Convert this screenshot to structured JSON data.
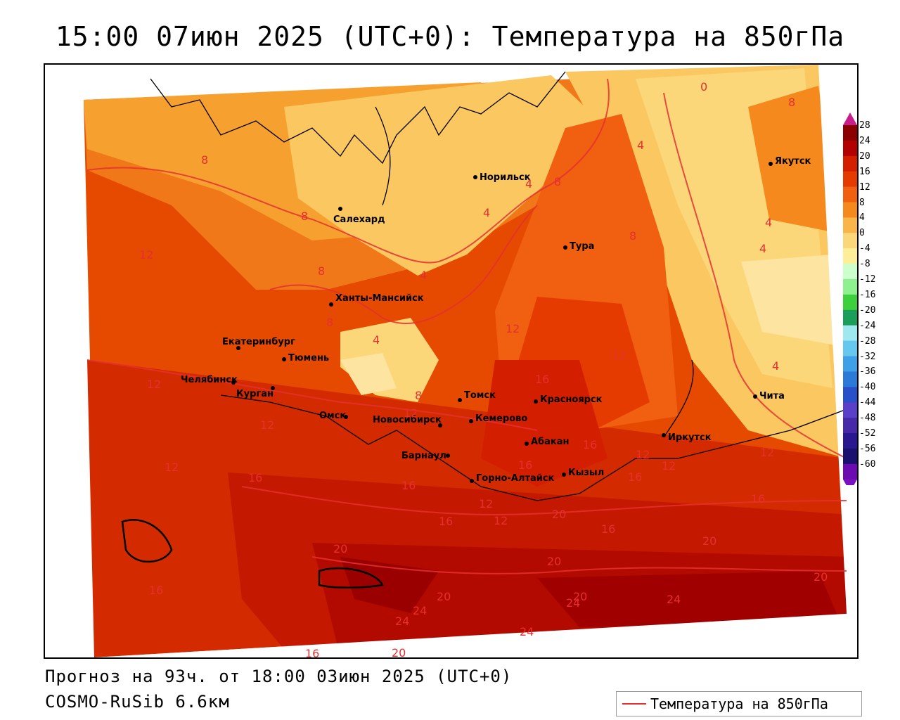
{
  "header": {
    "title": "15:00 07июн 2025 (UTC+0): Температура на 850гПа"
  },
  "footer": {
    "forecast": "Прогноз на 93ч. от 18:00 03июн 2025 (UTC+0)",
    "model": "COSMO-RuSib 6.6км"
  },
  "legend": {
    "label": "Температура на 850гПа",
    "line_color": "#e53030"
  },
  "colorbar": {
    "ticks": [
      "28",
      "24",
      "20",
      "16",
      "12",
      "8",
      "4",
      "0",
      "-4",
      "-8",
      "-12",
      "-16",
      "-20",
      "-24",
      "-28",
      "-32",
      "-36",
      "-40",
      "-44",
      "-48",
      "-52",
      "-56",
      "-60"
    ],
    "colors": [
      "#8b0000",
      "#b30000",
      "#d41e00",
      "#e63b00",
      "#f06010",
      "#f5891e",
      "#f9b44a",
      "#fbd77a",
      "#ffee99",
      "#ccffcc",
      "#8ff08f",
      "#3cd03c",
      "#1a9e5a",
      "#a0e8f0",
      "#66c8ee",
      "#3fa0e8",
      "#2b7ad8",
      "#2850c8",
      "#5a40c8",
      "#4628a8",
      "#2a1890",
      "#1a1070",
      "#6a0ab0"
    ]
  },
  "cities": [
    {
      "name": "Норильск"
    },
    {
      "name": "Салехард"
    },
    {
      "name": "Тура"
    },
    {
      "name": "Якутск"
    },
    {
      "name": "Ханты-Мансийск"
    },
    {
      "name": "Екатеринбург"
    },
    {
      "name": "Тюмень"
    },
    {
      "name": "Челябинск"
    },
    {
      "name": "Курган"
    },
    {
      "name": "Омск"
    },
    {
      "name": "Новосибирск"
    },
    {
      "name": "Томск"
    },
    {
      "name": "Кемерово"
    },
    {
      "name": "Красноярск"
    },
    {
      "name": "Абакан"
    },
    {
      "name": "Барнаул"
    },
    {
      "name": "Горно-Алтайск"
    },
    {
      "name": "Кызыл"
    },
    {
      "name": "Иркутск"
    },
    {
      "name": "Чита"
    }
  ],
  "isotherm_labels": [
    "0",
    "8",
    "8",
    "4",
    "8",
    "4",
    "8",
    "4",
    "12",
    "4",
    "8",
    "12",
    "4",
    "8",
    "4",
    "12",
    "12",
    "16",
    "8",
    "4",
    "12",
    "4",
    "16",
    "12",
    "8",
    "12",
    "12",
    "16",
    "12",
    "16",
    "12",
    "16",
    "16",
    "12",
    "12",
    "16",
    "16",
    "20",
    "16",
    "12",
    "20",
    "20",
    "16",
    "20",
    "20",
    "24",
    "20",
    "24",
    "24",
    "24",
    "20",
    "16",
    "24",
    "20"
  ]
}
